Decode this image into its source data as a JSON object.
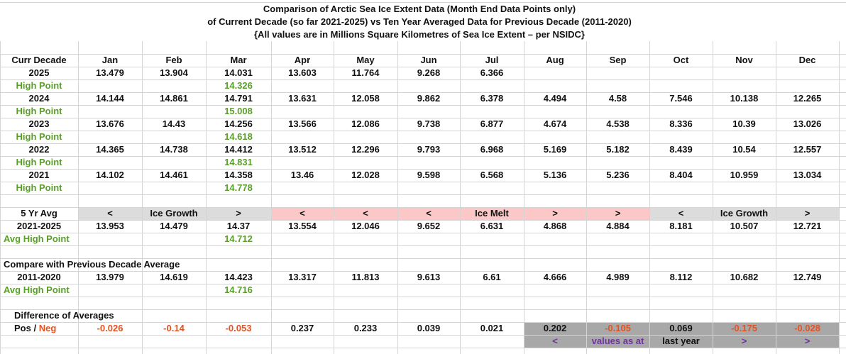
{
  "title": [
    "Comparison of Arctic Sea Ice Extent Data (Month End Data Points only)",
    "of Current Decade (so far 2021-2025) vs Ten Year Averaged Data for Previous Decade (2011-2020)",
    "{All values are in Millions Square Kilometres of Sea Ice Extent – per NSIDC}"
  ],
  "rows": [
    [
      "Curr Decade",
      "Jan",
      "Feb",
      "Mar",
      "Apr",
      "May",
      "Jun",
      "Jul",
      "Aug",
      "Sep",
      "Oct",
      "Nov",
      "Dec"
    ],
    [
      "2025",
      "13.479",
      "13.904",
      "14.031",
      "13.603",
      "11.764",
      "9.268",
      "6.366",
      null,
      null,
      null,
      null,
      null
    ],
    [
      "High Point",
      null,
      null,
      "14.326",
      null,
      null,
      null,
      null,
      null,
      null,
      null,
      null,
      null
    ],
    [
      "2024",
      "14.144",
      "14.861",
      "14.791",
      "13.631",
      "12.058",
      "9.862",
      "6.378",
      "4.494",
      "4.58",
      "7.546",
      "10.138",
      "12.265"
    ],
    [
      "High Point",
      null,
      null,
      "15.008",
      null,
      null,
      null,
      null,
      null,
      null,
      null,
      null,
      null
    ],
    [
      "2023",
      "13.676",
      "14.43",
      "14.256",
      "13.566",
      "12.086",
      "9.738",
      "6.877",
      "4.674",
      "4.538",
      "8.336",
      "10.39",
      "13.026"
    ],
    [
      "High Point",
      null,
      null,
      "14.618",
      null,
      null,
      null,
      null,
      null,
      null,
      null,
      null,
      null
    ],
    [
      "2022",
      "14.365",
      "14.738",
      "14.412",
      "13.512",
      "12.296",
      "9.793",
      "6.968",
      "5.169",
      "5.182",
      "8.439",
      "10.54",
      "12.557"
    ],
    [
      "High Point",
      null,
      null,
      "14.831",
      null,
      null,
      null,
      null,
      null,
      null,
      null,
      null,
      null
    ],
    [
      "2021",
      "14.102",
      "14.461",
      "14.358",
      "13.46",
      "12.028",
      "9.598",
      "6.568",
      "5.136",
      "5.236",
      "8.404",
      "10.959",
      "13.034"
    ],
    [
      "High Point",
      null,
      null,
      "14.778",
      null,
      null,
      null,
      null,
      null,
      null,
      null,
      null,
      null
    ],
    [],
    [
      "5 Yr Avg",
      "<",
      "Ice Growth",
      ">",
      "<",
      "<",
      "<",
      "Ice Melt",
      ">",
      ">",
      "<",
      "Ice Growth",
      ">"
    ],
    [
      "2021-2025",
      "13.953",
      "14.479",
      "14.37",
      "13.554",
      "12.046",
      "9.652",
      "6.631",
      "4.868",
      "4.884",
      "8.181",
      "10.507",
      "12.721"
    ],
    [
      "Avg High Point",
      null,
      null,
      "14.712",
      null,
      null,
      null,
      null,
      null,
      null,
      null,
      null,
      null
    ],
    [],
    [
      "Compare with Previous Decade Average",
      null,
      null,
      null,
      null,
      null,
      null,
      null,
      null,
      null,
      null,
      null,
      null
    ],
    [
      "2011-2020",
      "13.979",
      "14.619",
      "14.423",
      "13.317",
      "11.813",
      "9.613",
      "6.61",
      "4.666",
      "4.989",
      "8.112",
      "10.682",
      "12.749"
    ],
    [
      "Avg High Point",
      null,
      null,
      "14.716",
      null,
      null,
      null,
      null,
      null,
      null,
      null,
      null,
      null
    ],
    [],
    [
      "Difference of Averages",
      null,
      null,
      null,
      null,
      null,
      null,
      null,
      null,
      null,
      null,
      null,
      null
    ],
    [
      [
        "Pos /",
        "Neg"
      ],
      "-0.026",
      "-0.14",
      "-0.053",
      "0.237",
      "0.233",
      "0.039",
      "0.021",
      "0.202",
      "-0.105",
      "0.069",
      "-0.175",
      "-0.028"
    ],
    [
      null,
      null,
      null,
      null,
      null,
      null,
      null,
      null,
      "<",
      "values as at",
      "last year",
      ">",
      ">"
    ]
  ]
}
